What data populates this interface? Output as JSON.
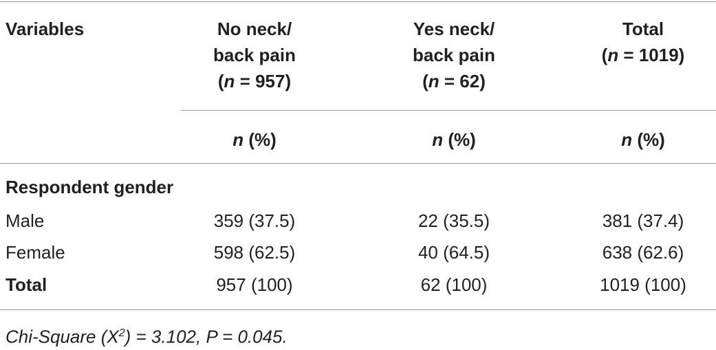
{
  "table": {
    "header": [
      {
        "title_lines": [
          "Variables"
        ]
      },
      {
        "title_lines": [
          "No neck/",
          "back pain"
        ],
        "count": [
          "(",
          "n",
          " = 957)"
        ]
      },
      {
        "title_lines": [
          "Yes neck/",
          "back pain"
        ],
        "count": [
          "(",
          "n",
          " = 62)"
        ]
      },
      {
        "title_lines": [
          "Total"
        ],
        "count": [
          "(",
          "n",
          " = 1019)"
        ]
      }
    ],
    "subheader": [
      [
        "n",
        " (%)"
      ],
      [
        "n",
        " (%)"
      ],
      [
        "n",
        " (%)"
      ]
    ],
    "section": "Respondent gender",
    "rows": [
      [
        "Male",
        "359 (37.5)",
        "22 (35.5)",
        "381 (37.4)"
      ],
      [
        "Female",
        "598 (62.5)",
        "40 (64.5)",
        "638 (62.6)"
      ],
      [
        "Total",
        "957 (100)",
        "62 (100)",
        "1019 (100)"
      ]
    ],
    "footnote": [
      "Chi-Square (X",
      "2",
      ") = 3.102, P = 0.045."
    ]
  }
}
